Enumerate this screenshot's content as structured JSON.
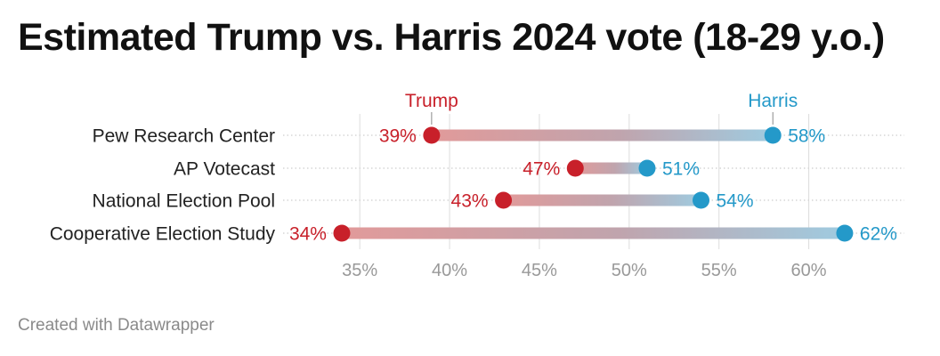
{
  "title": "Estimated Trump vs. Harris 2024 vote (18-29 y.o.)",
  "footer": "Created with Datawrapper",
  "colors": {
    "trump": "#c8202a",
    "harris": "#2499c9",
    "grid": "#dddddd",
    "tick": "#999999",
    "label": "#222222"
  },
  "chart_data": {
    "type": "dumbbell",
    "title": "Estimated Trump vs. Harris 2024 vote (18-29 y.o.)",
    "series": [
      {
        "name": "Trump",
        "values": [
          39,
          47,
          43,
          34
        ]
      },
      {
        "name": "Harris",
        "values": [
          58,
          51,
          54,
          62
        ]
      }
    ],
    "categories": [
      "Pew Research Center",
      "AP Votecast",
      "National Election Pool",
      "Cooperative Election Study"
    ],
    "xlim": [
      33.5,
      63
    ],
    "xticks": [
      35,
      40,
      45,
      50,
      55,
      60
    ],
    "tick_labels": [
      "35%",
      "40%",
      "45%",
      "50%",
      "55%",
      "60%"
    ],
    "value_labels": {
      "Trump": [
        "39%",
        "47%",
        "43%",
        "34%"
      ],
      "Harris": [
        "58%",
        "51%",
        "54%",
        "62%"
      ]
    },
    "legend": "inline labels above first row",
    "grid": true
  }
}
